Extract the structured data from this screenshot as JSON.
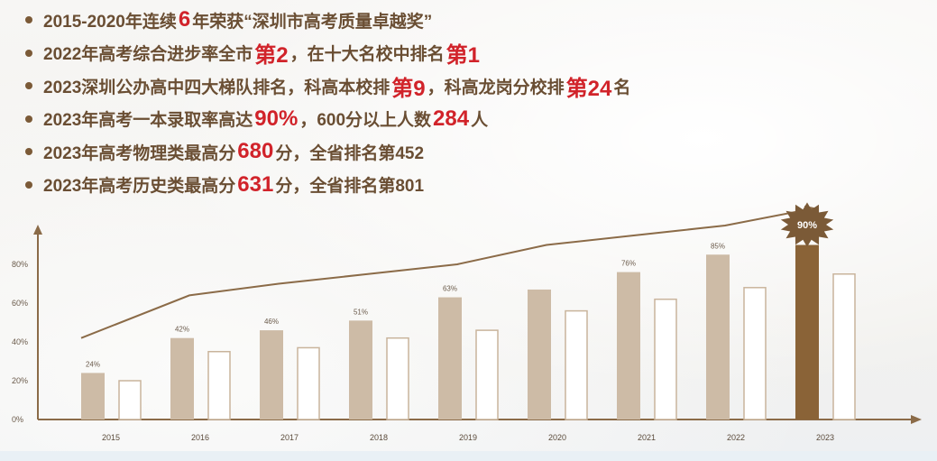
{
  "bullets": [
    {
      "text": [
        {
          "t": "2015-2020年连续"
        },
        {
          "t": "6",
          "hl": true
        },
        {
          "t": "年荣获“深圳市高考质量卓越奖”"
        }
      ]
    },
    {
      "text": [
        {
          "t": "2022年高考综合进步率全市"
        },
        {
          "t": "第2",
          "hl": true
        },
        {
          "t": "，在十大名校中排名"
        },
        {
          "t": "第1",
          "hl": true
        }
      ]
    },
    {
      "text": [
        {
          "t": "2023深圳公办高中四大梯队排名，科高本校排"
        },
        {
          "t": "第9",
          "hl": true
        },
        {
          "t": "，科高龙岗分校排"
        },
        {
          "t": "第24",
          "hl": true
        },
        {
          "t": "名"
        }
      ]
    },
    {
      "text": [
        {
          "t": "2023年高考一本录取率高达"
        },
        {
          "t": "90%",
          "hl": true
        },
        {
          "t": "，600分以上人数"
        },
        {
          "t": "284",
          "hl": true
        },
        {
          "t": "人"
        }
      ]
    },
    {
      "text": [
        {
          "t": "2023年高考物理类最高分"
        },
        {
          "t": "680",
          "hl": true
        },
        {
          "t": "分，全省排名第452"
        }
      ]
    },
    {
      "text": [
        {
          "t": "2023年高考历史类最高分"
        },
        {
          "t": "631",
          "hl": true
        },
        {
          "t": "分，全省排名第801"
        }
      ]
    }
  ],
  "colors": {
    "text": "#6a4e33",
    "highlight": "#d1232a",
    "bar_fill": "#cdbba6",
    "bar_highlight": "#8a6337",
    "bar_outline": "#c9b49c",
    "axis": "#8b6b48",
    "trend": "#8b6b48",
    "badge": "#7b5a37"
  },
  "chart_data": {
    "type": "bar",
    "categories": [
      "2015",
      "2016",
      "2017",
      "2018",
      "2019",
      "2020",
      "2021",
      "2022",
      "2023"
    ],
    "series": [
      {
        "values": [
          24,
          42,
          46,
          51,
          63,
          67,
          76,
          85,
          90
        ],
        "labels": [
          "24%",
          "42%",
          "46%",
          "51%",
          "63%",
          "",
          "76%",
          "85%",
          "90%"
        ],
        "style": "filled"
      },
      {
        "values": [
          20,
          35,
          37,
          42,
          46,
          56,
          62,
          68,
          75
        ],
        "style": "outline"
      }
    ],
    "trend_line": [
      42,
      64,
      70,
      75,
      80,
      90,
      95,
      100,
      108
    ],
    "ylim": [
      0,
      100
    ],
    "yticks": [
      0,
      20,
      40,
      60,
      80
    ],
    "ytick_labels": [
      "0%",
      "20%",
      "40%",
      "60%",
      "80%"
    ],
    "highlight_index": 8,
    "badge_label": "90%",
    "grid": false
  }
}
